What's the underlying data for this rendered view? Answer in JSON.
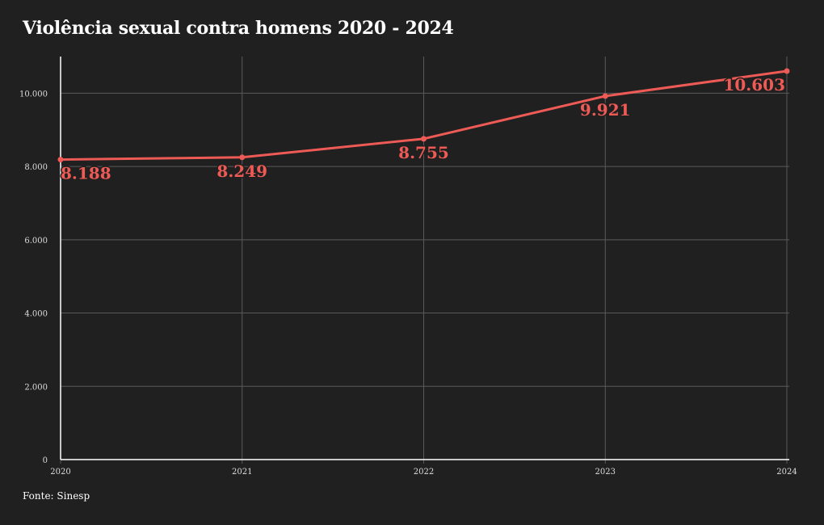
{
  "title": "Violência sexual contra homens 2020 - 2024",
  "source": "Fonte: Sinesp",
  "colors": {
    "background": "#202020",
    "line": "#ee5a55",
    "grid": "#5a5a5a",
    "axis": "#ffffff",
    "text": "#ffffff"
  },
  "chart_data": {
    "type": "line",
    "title": "Violência sexual contra homens 2020 - 2024",
    "xlabel": "",
    "ylabel": "",
    "x": [
      "2020",
      "2021",
      "2022",
      "2023",
      "2024"
    ],
    "series": [
      {
        "values": [
          8188,
          8249,
          8755,
          9921,
          10603
        ],
        "labels": [
          "8.188",
          "8.249",
          "8.755",
          "9.921",
          "10.603"
        ],
        "color": "#ee5a55"
      }
    ],
    "ylim": [
      0,
      11000
    ],
    "y_ticks": [
      0,
      2000,
      4000,
      6000,
      8000,
      10000
    ],
    "y_tick_labels": [
      "0",
      "2.000",
      "4.000",
      "6.000",
      "8.000",
      "10.000"
    ],
    "grid": true,
    "legend": "none"
  }
}
